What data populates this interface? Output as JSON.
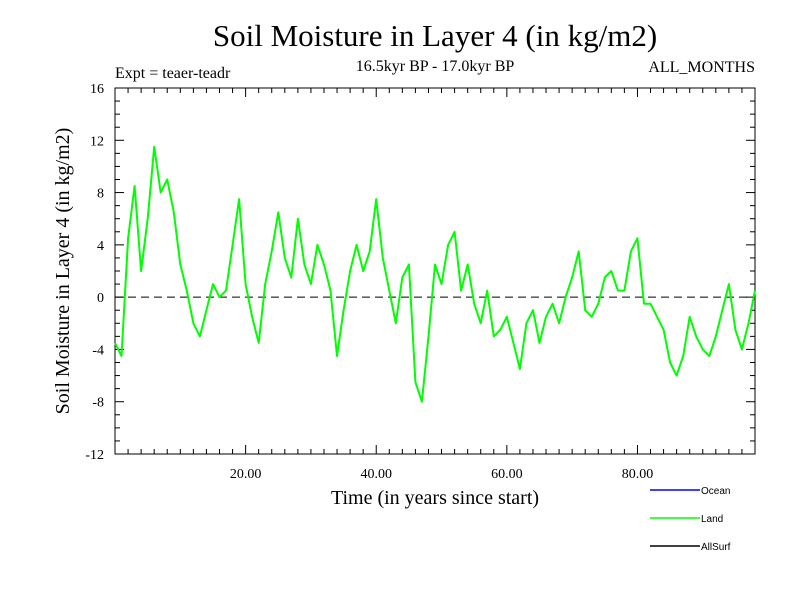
{
  "chart_data": {
    "type": "line",
    "title": "Soil Moisture in Layer 4 (in kg/m2)",
    "subtitle": "16.5kyr BP - 17.0kyr BP",
    "left_note": "Expt = teaer-teadr",
    "right_note": "ALL_MONTHS",
    "xlabel": "Time (in years since start)",
    "ylabel": "Soil Moisture in Layer 4 (in kg/m2)",
    "xlim": [
      0,
      98
    ],
    "ylim": [
      -12,
      16
    ],
    "x_ticks": [
      20,
      40,
      60,
      80
    ],
    "x_tick_labels": [
      "20.00",
      "40.00",
      "60.00",
      "80.00"
    ],
    "y_ticks": [
      -12,
      -8,
      -4,
      0,
      4,
      8,
      12,
      16
    ],
    "y_tick_labels": [
      "-12",
      "-8",
      "-4",
      "0",
      "4",
      "8",
      "12",
      "16"
    ],
    "zero_line": true,
    "legend": [
      {
        "name": "Ocean",
        "color": "#0000ff"
      },
      {
        "name": "Land",
        "color": "#00ff00"
      },
      {
        "name": "AllSurf",
        "color": "#000000"
      }
    ],
    "series": [
      {
        "name": "Land",
        "color": "#00ff00",
        "x": [
          0,
          1,
          2,
          3,
          4,
          5,
          6,
          7,
          8,
          9,
          10,
          11,
          12,
          13,
          14,
          15,
          16,
          17,
          18,
          19,
          20,
          21,
          22,
          23,
          24,
          25,
          26,
          27,
          28,
          29,
          30,
          31,
          32,
          33,
          34,
          35,
          36,
          37,
          38,
          39,
          40,
          41,
          42,
          43,
          44,
          45,
          46,
          47,
          48,
          49,
          50,
          51,
          52,
          53,
          54,
          55,
          56,
          57,
          58,
          59,
          60,
          61,
          62,
          63,
          64,
          65,
          66,
          67,
          68,
          69,
          70,
          71,
          72,
          73,
          74,
          75,
          76,
          77,
          78,
          79,
          80,
          81,
          82,
          83,
          84,
          85,
          86,
          87,
          88,
          89,
          90,
          91,
          92,
          93,
          94,
          95,
          96,
          97,
          98
        ],
        "values": [
          -3.5,
          -4.5,
          4.5,
          8.5,
          2.0,
          6.0,
          11.5,
          8.0,
          9.0,
          6.5,
          2.5,
          0.5,
          -2.0,
          -3.0,
          -1.0,
          1.0,
          0.0,
          0.5,
          4.0,
          7.5,
          1.0,
          -1.5,
          -3.5,
          1.0,
          3.5,
          6.5,
          3.0,
          1.5,
          6.0,
          2.5,
          1.0,
          4.0,
          2.5,
          0.5,
          -4.5,
          -1.0,
          2.0,
          4.0,
          2.0,
          3.5,
          7.5,
          3.0,
          0.5,
          -2.0,
          1.5,
          2.5,
          -6.5,
          -8.0,
          -3.0,
          2.5,
          1.0,
          4.0,
          5.0,
          0.5,
          2.5,
          -0.5,
          -2.0,
          0.5,
          -3.0,
          -2.5,
          -1.5,
          -3.5,
          -5.5,
          -2.0,
          -1.0,
          -3.5,
          -1.5,
          -0.5,
          -2.0,
          0.0,
          1.5,
          3.5,
          -1.0,
          -1.5,
          -0.5,
          1.5,
          2.0,
          0.5,
          0.5,
          3.5,
          4.5,
          -0.5,
          -0.5,
          -1.5,
          -2.5,
          -5.0,
          -6.0,
          -4.5,
          -1.5,
          -3.0,
          -4.0,
          -4.5,
          -3.0,
          -1.0,
          1.0,
          -2.5,
          -4.0,
          -2.0,
          0.5
        ]
      }
    ]
  }
}
